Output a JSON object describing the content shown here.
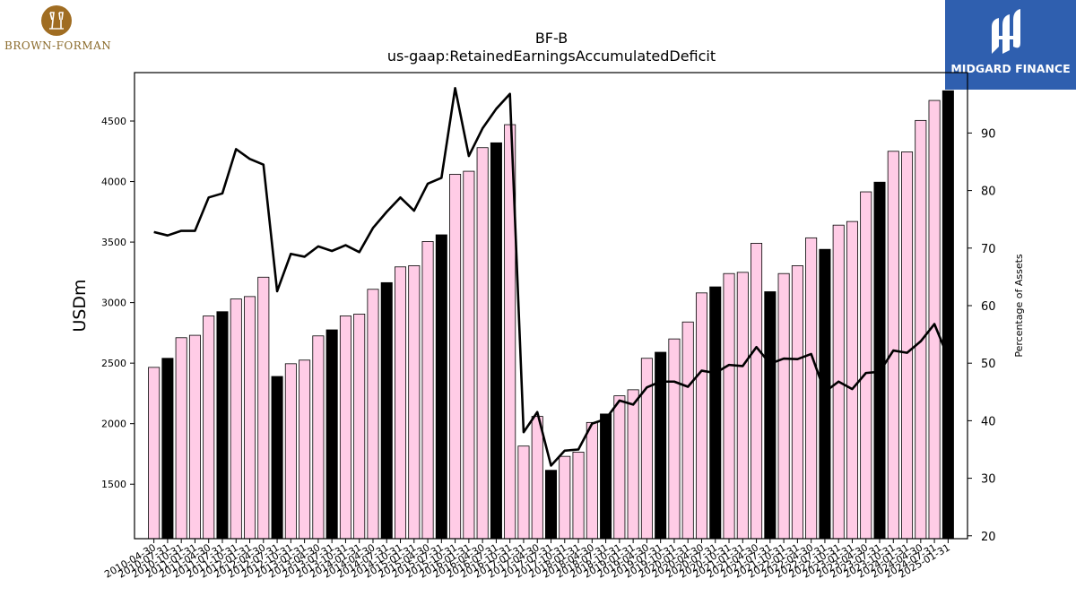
{
  "brand_left": {
    "name": "BROWN-FORMAN",
    "color": "#8a6a2a"
  },
  "brand_right": {
    "name": "MIDGARD FINANCE",
    "color": "#2f5faf"
  },
  "chart_data": {
    "type": "bar",
    "title": "BF-B",
    "subtitle": "us-gaap:RetainedEarningsAccumulatedDeficit",
    "ylabel": "USDm",
    "y2label": "Percentage of Assets",
    "ylim": [
      1050,
      4900
    ],
    "y2lim": [
      19.5,
      100.5
    ],
    "yticks": [
      1500,
      2000,
      2500,
      3000,
      3500,
      4000,
      4500
    ],
    "y2ticks": [
      20,
      30,
      40,
      50,
      60,
      70,
      80,
      90
    ],
    "bar_colors": {
      "quarterly": "#ffcce6",
      "fiscal_year_end": "#000000"
    },
    "line_color": "#000000",
    "categories": [
      "2010-04-30",
      "2010-07-31",
      "2010-10-31",
      "2011-01-31",
      "2011-04-30",
      "2011-07-31",
      "2011-10-31",
      "2012-01-31",
      "2012-04-30",
      "2012-07-31",
      "2012-10-31",
      "2013-01-31",
      "2013-04-30",
      "2013-07-31",
      "2013-10-31",
      "2014-01-31",
      "2014-04-30",
      "2014-07-31",
      "2014-10-31",
      "2015-01-31",
      "2015-04-30",
      "2015-07-31",
      "2015-10-31",
      "2016-01-31",
      "2016-04-30",
      "2016-07-31",
      "2016-10-31",
      "2017-01-31",
      "2017-04-30",
      "2017-07-31",
      "2017-10-31",
      "2018-01-31",
      "2018-04-30",
      "2018-07-31",
      "2018-10-31",
      "2019-01-31",
      "2019-04-30",
      "2019-07-31",
      "2019-10-31",
      "2020-01-31",
      "2020-04-30",
      "2020-07-31",
      "2020-10-31",
      "2021-01-31",
      "2021-04-30",
      "2021-07-31",
      "2021-10-31",
      "2022-01-31",
      "2022-04-30",
      "2022-07-31",
      "2022-10-31",
      "2023-01-31",
      "2023-04-30",
      "2023-07-31",
      "2023-10-31",
      "2024-01-31",
      "2024-04-30",
      "2024-07-31",
      "2025-01-31"
    ],
    "fiscal_year_end": [
      false,
      true,
      false,
      false,
      false,
      true,
      false,
      false,
      false,
      true,
      false,
      false,
      false,
      true,
      false,
      false,
      false,
      true,
      false,
      false,
      false,
      true,
      false,
      false,
      false,
      true,
      false,
      false,
      false,
      true,
      false,
      false,
      false,
      true,
      false,
      false,
      false,
      true,
      false,
      false,
      false,
      true,
      false,
      false,
      false,
      true,
      false,
      false,
      false,
      true,
      false,
      false,
      false,
      true,
      false,
      false,
      false,
      false,
      true
    ],
    "series": [
      {
        "values": [
          2465,
          2540,
          2710,
          2730,
          2890,
          2925,
          3030,
          3050,
          3210,
          2390,
          2495,
          2525,
          2725,
          2775,
          2890,
          2905,
          3110,
          3165,
          3295,
          3305,
          3505,
          3560,
          4060,
          4085,
          4280,
          4320,
          4470,
          1815,
          2060,
          1615,
          1730,
          1765,
          2010,
          2080,
          2230,
          2280,
          2540,
          2590,
          2700,
          2840,
          3080,
          3130,
          3240,
          3250,
          3490,
          3090,
          3240,
          3305,
          3535,
          3440,
          3640,
          3670,
          3915,
          3995,
          4250,
          4245,
          4505,
          4670,
          4750
        ]
      },
      {
        "axis": "right",
        "values": [
          72.8,
          72.2,
          73.0,
          73.0,
          78.8,
          79.5,
          87.2,
          85.5,
          84.5,
          62.5,
          69.0,
          68.5,
          70.3,
          69.5,
          70.5,
          69.3,
          73.5,
          76.3,
          78.8,
          76.5,
          81.2,
          82.2,
          97.8,
          86.0,
          90.8,
          94.2,
          96.8,
          38.0,
          41.5,
          32.2,
          34.8,
          35.0,
          39.5,
          40.3,
          43.5,
          42.8,
          45.8,
          46.8,
          46.8,
          45.9,
          48.7,
          48.3,
          49.7,
          49.5,
          52.8,
          49.9,
          50.8,
          50.7,
          51.6,
          45.0,
          46.8,
          45.5,
          48.3,
          48.5,
          52.2,
          51.8,
          53.8,
          56.8,
          51.0
        ]
      }
    ]
  }
}
